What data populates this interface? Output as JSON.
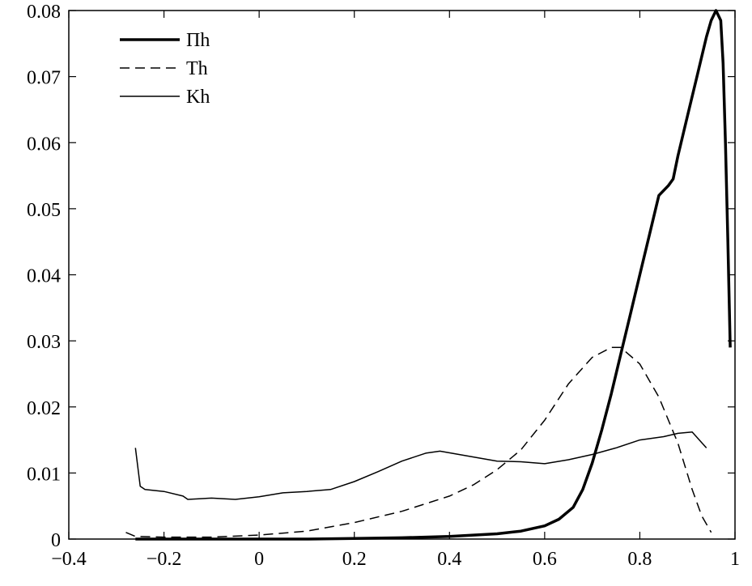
{
  "chart_data": {
    "type": "line",
    "title": "",
    "xlabel": "",
    "ylabel": "",
    "xlim": [
      -0.4,
      1
    ],
    "ylim": [
      0,
      0.08
    ],
    "xticks": [
      -0.4,
      -0.2,
      0,
      0.2,
      0.4,
      0.6,
      0.8,
      1
    ],
    "xtick_labels": [
      "−0.4",
      "−0.2",
      "0",
      "0.2",
      "0.4",
      "0.6",
      "0.8",
      "1"
    ],
    "yticks": [
      0,
      0.01,
      0.02,
      0.03,
      0.04,
      0.05,
      0.06,
      0.07,
      0.08
    ],
    "ytick_labels": [
      "0",
      "0.01",
      "0.02",
      "0.03",
      "0.04",
      "0.05",
      "0.06",
      "0.07",
      "0.08"
    ],
    "grid": false,
    "legend_position": "top-left",
    "series": [
      {
        "name": "Πh",
        "style": "solid-thick",
        "color": "#000000",
        "points": [
          [
            -0.26,
            0.0
          ],
          [
            -0.2,
            0.0
          ],
          [
            -0.1,
            0.0
          ],
          [
            0.0,
            0.0
          ],
          [
            0.1,
            0.0
          ],
          [
            0.2,
            0.0001
          ],
          [
            0.3,
            0.0002
          ],
          [
            0.4,
            0.0004
          ],
          [
            0.45,
            0.0006
          ],
          [
            0.5,
            0.0008
          ],
          [
            0.55,
            0.0012
          ],
          [
            0.6,
            0.002
          ],
          [
            0.63,
            0.003
          ],
          [
            0.66,
            0.0048
          ],
          [
            0.68,
            0.0075
          ],
          [
            0.7,
            0.0115
          ],
          [
            0.72,
            0.0165
          ],
          [
            0.74,
            0.022
          ],
          [
            0.76,
            0.028
          ],
          [
            0.78,
            0.034
          ],
          [
            0.8,
            0.04
          ],
          [
            0.82,
            0.046
          ],
          [
            0.84,
            0.052
          ],
          [
            0.86,
            0.0535
          ],
          [
            0.87,
            0.0545
          ],
          [
            0.88,
            0.058
          ],
          [
            0.9,
            0.064
          ],
          [
            0.92,
            0.07
          ],
          [
            0.94,
            0.076
          ],
          [
            0.95,
            0.0785
          ],
          [
            0.96,
            0.08
          ],
          [
            0.97,
            0.0785
          ],
          [
            0.975,
            0.072
          ],
          [
            0.98,
            0.06
          ],
          [
            0.985,
            0.045
          ],
          [
            0.99,
            0.029
          ]
        ]
      },
      {
        "name": "Th",
        "style": "dashed",
        "color": "#000000",
        "points": [
          [
            -0.28,
            0.001
          ],
          [
            -0.26,
            0.0004
          ],
          [
            -0.2,
            0.0003
          ],
          [
            -0.1,
            0.0003
          ],
          [
            0.0,
            0.0006
          ],
          [
            0.1,
            0.0012
          ],
          [
            0.2,
            0.0025
          ],
          [
            0.3,
            0.0042
          ],
          [
            0.4,
            0.0065
          ],
          [
            0.45,
            0.0082
          ],
          [
            0.5,
            0.0105
          ],
          [
            0.55,
            0.0135
          ],
          [
            0.6,
            0.018
          ],
          [
            0.65,
            0.0235
          ],
          [
            0.7,
            0.0275
          ],
          [
            0.74,
            0.029
          ],
          [
            0.76,
            0.029
          ],
          [
            0.8,
            0.0265
          ],
          [
            0.84,
            0.0215
          ],
          [
            0.88,
            0.0145
          ],
          [
            0.91,
            0.0075
          ],
          [
            0.93,
            0.0035
          ],
          [
            0.95,
            0.001
          ]
        ]
      },
      {
        "name": "Kh",
        "style": "solid-thin",
        "color": "#000000",
        "points": [
          [
            -0.26,
            0.0138
          ],
          [
            -0.25,
            0.008
          ],
          [
            -0.24,
            0.0075
          ],
          [
            -0.2,
            0.0072
          ],
          [
            -0.16,
            0.0065
          ],
          [
            -0.15,
            0.006
          ],
          [
            -0.1,
            0.0062
          ],
          [
            -0.05,
            0.006
          ],
          [
            0.0,
            0.0064
          ],
          [
            0.05,
            0.007
          ],
          [
            0.1,
            0.0072
          ],
          [
            0.15,
            0.0075
          ],
          [
            0.2,
            0.0087
          ],
          [
            0.25,
            0.0102
          ],
          [
            0.3,
            0.0118
          ],
          [
            0.35,
            0.013
          ],
          [
            0.38,
            0.0133
          ],
          [
            0.42,
            0.0128
          ],
          [
            0.5,
            0.0118
          ],
          [
            0.55,
            0.0117
          ],
          [
            0.6,
            0.0114
          ],
          [
            0.65,
            0.012
          ],
          [
            0.7,
            0.0128
          ],
          [
            0.75,
            0.0138
          ],
          [
            0.8,
            0.015
          ],
          [
            0.85,
            0.0155
          ],
          [
            0.88,
            0.016
          ],
          [
            0.91,
            0.0162
          ],
          [
            0.94,
            0.0138
          ]
        ]
      }
    ]
  }
}
